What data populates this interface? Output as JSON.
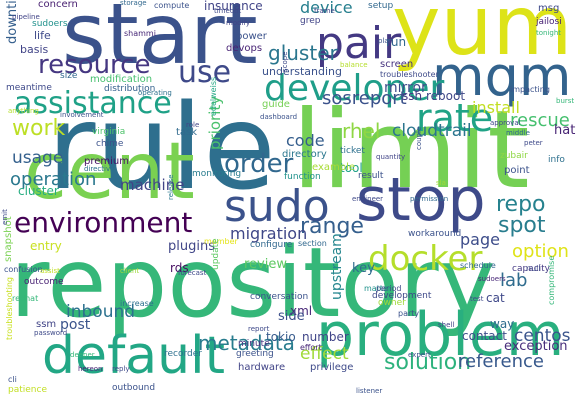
{
  "words": [
    {
      "text": "rule",
      "color": "#2e6f8e"
    },
    {
      "text": "limit",
      "color": "#75d054"
    },
    {
      "text": "repository",
      "color": "#35b779"
    },
    {
      "text": "cent",
      "color": "#7ad151"
    },
    {
      "text": "yum",
      "color": "#dde318"
    },
    {
      "text": "start",
      "color": "#3b528b"
    },
    {
      "text": "problem",
      "color": "#29af7f"
    },
    {
      "text": "stop",
      "color": "#3e4a89"
    },
    {
      "text": "mqm",
      "color": "#33638d"
    },
    {
      "text": "default",
      "color": "#22a785"
    },
    {
      "text": "developer",
      "color": "#1f9e89"
    },
    {
      "text": "sudo",
      "color": "#3b528b"
    },
    {
      "text": "pair",
      "color": "#443983"
    },
    {
      "text": "environment",
      "color": "#440154"
    },
    {
      "text": "docker",
      "color": "#b5de2b"
    },
    {
      "text": "assistance",
      "color": "#1fa187"
    },
    {
      "text": "rate",
      "color": "#20a386"
    },
    {
      "text": "order",
      "color": "#31688e"
    },
    {
      "text": "use",
      "color": "#3e4989"
    },
    {
      "text": "resource",
      "color": "#453781"
    },
    {
      "text": "solution",
      "color": "#2db27d"
    },
    {
      "text": "metadata",
      "color": "#287c8e"
    },
    {
      "text": "gluster",
      "color": "#2a768e"
    },
    {
      "text": "reference",
      "color": "#38598c"
    },
    {
      "text": "repo",
      "color": "#26828e"
    },
    {
      "text": "spot",
      "color": "#287d8e"
    },
    {
      "text": "option",
      "color": "#dfe318"
    },
    {
      "text": "range",
      "color": "#355f8d"
    },
    {
      "text": "migration",
      "color": "#3f4788"
    },
    {
      "text": "operation",
      "color": "#2a788e"
    },
    {
      "text": "work",
      "color": "#bddf26"
    },
    {
      "text": "install",
      "color": "#c2df23"
    },
    {
      "text": "code",
      "color": "#355e8d"
    },
    {
      "text": "cloudtrail",
      "color": "#2b758e"
    },
    {
      "text": "rhel",
      "color": "#8fd744"
    },
    {
      "text": "sosreport",
      "color": "#3b528b"
    },
    {
      "text": "rescue",
      "color": "#46c06f"
    },
    {
      "text": "centos",
      "color": "#3a548c"
    },
    {
      "text": "inbound",
      "color": "#2c718e"
    },
    {
      "text": "effect",
      "color": "#a0da39"
    },
    {
      "text": "machine",
      "color": "#414487"
    },
    {
      "text": "usage",
      "color": "#34608d"
    },
    {
      "text": "priority",
      "color": "#4ac16d"
    },
    {
      "text": "device",
      "color": "#277f8e"
    },
    {
      "text": "upstream",
      "color": "#24868e"
    },
    {
      "text": "page",
      "color": "#3d4d8a"
    },
    {
      "text": "lab",
      "color": "#2f6c8e"
    },
    {
      "text": "xml",
      "color": "#482878"
    },
    {
      "text": "plugins",
      "color": "#404688"
    },
    {
      "text": "review",
      "color": "#5ec962"
    },
    {
      "text": "post",
      "color": "#3a538b"
    },
    {
      "text": "tokio",
      "color": "#375b8d"
    },
    {
      "text": "number",
      "color": "#404588"
    },
    {
      "text": "side",
      "color": "#3c4f8a"
    },
    {
      "text": "cat",
      "color": "#3f4889"
    },
    {
      "text": "contact",
      "color": "#3d4e8a"
    },
    {
      "text": "exception",
      "color": "#472d7b"
    },
    {
      "text": "way",
      "color": "#2e6d8e"
    },
    {
      "text": "key",
      "color": "#2f6b8e"
    },
    {
      "text": "mirror",
      "color": "#3e4c8a"
    },
    {
      "text": "reboot",
      "color": "#3f4788"
    },
    {
      "text": "ssh",
      "color": "#443a83"
    },
    {
      "text": "hat",
      "color": "#482575"
    },
    {
      "text": "rds",
      "color": "#471063"
    },
    {
      "text": "insurance",
      "color": "#414487"
    },
    {
      "text": "power",
      "color": "#3b528b"
    },
    {
      "text": "devops",
      "color": "#482475"
    },
    {
      "text": "run",
      "color": "#31688e"
    },
    {
      "text": "screen",
      "color": "#46337f"
    },
    {
      "text": "understanding",
      "color": "#3b528b"
    },
    {
      "text": "modification",
      "color": "#46c06f"
    },
    {
      "text": "distribution",
      "color": "#34618d"
    },
    {
      "text": "life",
      "color": "#3e4a89"
    },
    {
      "text": "downtime",
      "color": "#355f8d"
    },
    {
      "text": "basis",
      "color": "#414487"
    },
    {
      "text": "concern",
      "color": "#482071"
    },
    {
      "text": "sudoers",
      "color": "#21918c"
    },
    {
      "text": "size",
      "color": "#31688e"
    },
    {
      "text": "meantime",
      "color": "#3e4989"
    },
    {
      "text": "task",
      "color": "#306a8e"
    },
    {
      "text": "guide",
      "color": "#75d054"
    },
    {
      "text": "tool",
      "color": "#1fa188"
    },
    {
      "text": "directory",
      "color": "#2a778e"
    },
    {
      "text": "example",
      "color": "#a8db34"
    },
    {
      "text": "function",
      "color": "#20928c"
    },
    {
      "text": "result",
      "color": "#3b528b"
    },
    {
      "text": "ticket",
      "color": "#2d708e"
    },
    {
      "text": "premium",
      "color": "#471164"
    },
    {
      "text": "cluster",
      "color": "#27ad81"
    },
    {
      "text": "chime",
      "color": "#3b528b"
    },
    {
      "text": "virginia",
      "color": "#4ec36b"
    },
    {
      "text": "monitoring",
      "color": "#287c8e"
    },
    {
      "text": "entry",
      "color": "#c8e020"
    },
    {
      "text": "outcome",
      "color": "#482173"
    },
    {
      "text": "configure",
      "color": "#31688e"
    },
    {
      "text": "member",
      "color": "#e5e419"
    },
    {
      "text": "conversation",
      "color": "#3b528b"
    },
    {
      "text": "development",
      "color": "#3e4989"
    },
    {
      "text": "capacity",
      "color": "#443983"
    },
    {
      "text": "workaround",
      "color": "#3b528b"
    },
    {
      "text": "section",
      "color": "#31688e"
    },
    {
      "text": "matter",
      "color": "#20928c"
    },
    {
      "text": "hardware",
      "color": "#414487"
    },
    {
      "text": "privilege",
      "color": "#3e4a89"
    },
    {
      "text": "recorder",
      "color": "#2d708e"
    },
    {
      "text": "greeting",
      "color": "#3b528b"
    },
    {
      "text": "minute",
      "color": "#46337f"
    },
    {
      "text": "effort",
      "color": "#482878"
    },
    {
      "text": "ssm",
      "color": "#414487"
    },
    {
      "text": "password",
      "color": "#3e4a89"
    },
    {
      "text": "outbound",
      "color": "#3b528b"
    },
    {
      "text": "patience",
      "color": "#c2df23"
    },
    {
      "text": "zubair",
      "color": "#8fd744"
    },
    {
      "text": "point",
      "color": "#3b528b"
    },
    {
      "text": "info",
      "color": "#2d708e"
    },
    {
      "text": "msg",
      "color": "#3e4989"
    },
    {
      "text": "jailosi",
      "color": "#482475"
    },
    {
      "text": "impacting",
      "color": "#3b528b"
    },
    {
      "text": "troubleshooter",
      "color": "#3e4a89"
    },
    {
      "text": "setup",
      "color": "#31688e"
    },
    {
      "text": "grep",
      "color": "#414487"
    },
    {
      "text": "shammi",
      "color": "#482878"
    },
    {
      "text": "compute",
      "color": "#3b528b"
    },
    {
      "text": "storage",
      "color": "#31688e"
    },
    {
      "text": "frame",
      "color": "#414487"
    },
    {
      "text": "burst",
      "color": "#35b779"
    },
    {
      "text": "approval",
      "color": "#3e4989"
    },
    {
      "text": "middle",
      "color": "#31688e"
    },
    {
      "text": "snapshot",
      "color": "#7ad151"
    },
    {
      "text": "confusion",
      "color": "#3b528b"
    },
    {
      "text": "troubleshooting",
      "color": "#c8e020"
    },
    {
      "text": "redhat",
      "color": "#35b779"
    },
    {
      "text": "pipeline",
      "color": "#414487"
    },
    {
      "text": "listener",
      "color": "#3b528b"
    },
    {
      "text": "schedule",
      "color": "#31688e"
    },
    {
      "text": "sudoers",
      "color": "#482878"
    },
    {
      "text": "null",
      "color": "#3e4a89"
    },
    {
      "text": "compromise",
      "color": "#35b779"
    },
    {
      "text": "owner",
      "color": "#a0da39"
    },
    {
      "text": "party",
      "color": "#3b528b"
    },
    {
      "text": "period",
      "color": "#3e4989"
    },
    {
      "text": "update",
      "color": "#5ec962"
    },
    {
      "text": "increase",
      "color": "#2d708e"
    },
    {
      "text": "forecast",
      "color": "#3e4989"
    },
    {
      "text": "release",
      "color": "#2a788e"
    },
    {
      "text": "role",
      "color": "#414487"
    },
    {
      "text": "edelweiss",
      "color": "#22a785"
    },
    {
      "text": "dashboard",
      "color": "#3b528b"
    },
    {
      "text": "anything",
      "color": "#b5de2b"
    },
    {
      "text": "involvement",
      "color": "#3b528b"
    },
    {
      "text": "scope",
      "color": "#3e4a89"
    },
    {
      "text": "modify",
      "color": "#414487"
    },
    {
      "text": "timeout",
      "color": "#3e4989"
    },
    {
      "text": "directive",
      "color": "#2d708e"
    },
    {
      "text": "engineer",
      "color": "#3e4989"
    },
    {
      "text": "quantity",
      "color": "#414487"
    },
    {
      "text": "couple",
      "color": "#3b528b"
    },
    {
      "text": "permission",
      "color": "#31688e"
    },
    {
      "text": "reply",
      "color": "#3e4a89"
    },
    {
      "text": "hereon",
      "color": "#482878"
    },
    {
      "text": "deeper",
      "color": "#35b779"
    },
    {
      "text": "cli",
      "color": "#3b528b"
    },
    {
      "text": "test",
      "color": "#3e4a89"
    },
    {
      "text": "expert",
      "color": "#3b528b"
    },
    {
      "text": "shell",
      "color": "#414487"
    },
    {
      "text": "report",
      "color": "#3e4989"
    },
    {
      "text": "assist",
      "color": "#c2df23"
    },
    {
      "text": "client",
      "color": "#a0da39"
    },
    {
      "text": "tonight",
      "color": "#35b779"
    },
    {
      "text": "balance",
      "color": "#b5de2b"
    },
    {
      "text": "peter",
      "color": "#3e4a89"
    },
    {
      "text": "operating",
      "color": "#2d708e"
    },
    {
      "text": "plan",
      "color": "#3b528b"
    },
    {
      "text": "sla",
      "color": "#a0da39"
    },
    {
      "text": "emit",
      "color": "#3e4989"
    }
  ]
}
